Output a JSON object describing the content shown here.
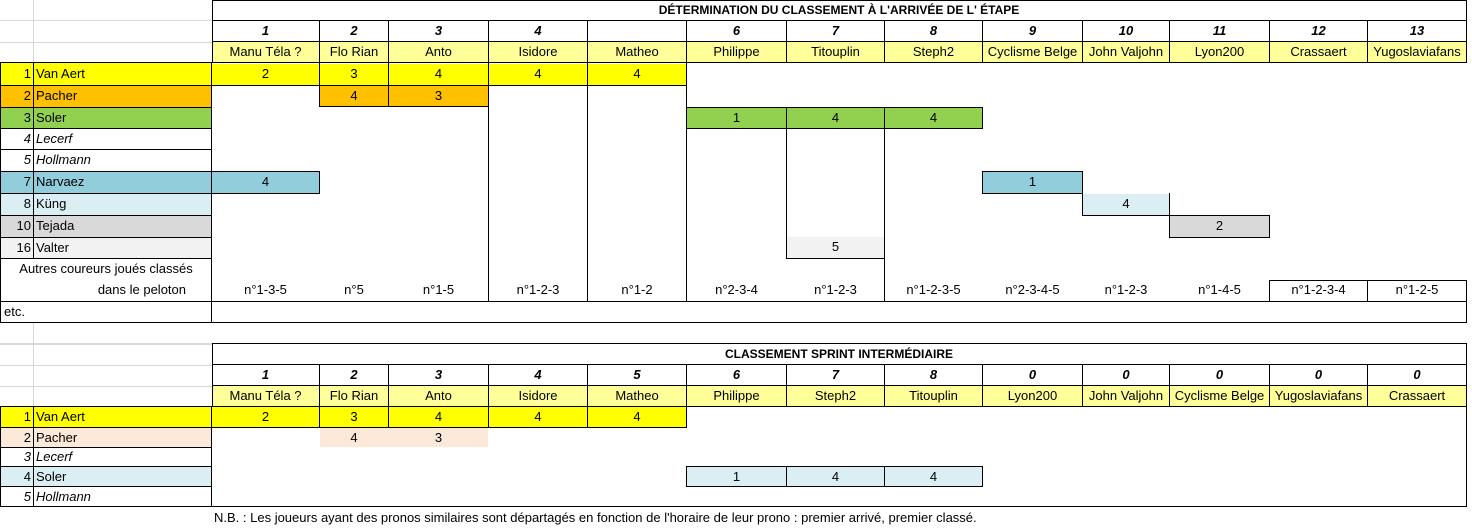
{
  "table1": {
    "title": "DÉTERMINATION DU CLASSEMENT À L'ARRIVÉE DE L' ÉTAPE",
    "player_numbers": [
      "1",
      "2",
      "3",
      "4",
      "",
      "6",
      "7",
      "8",
      "9",
      "10",
      "11",
      "12",
      "13"
    ],
    "players": [
      "Manu Téla ?",
      "Flo Rian",
      "Anto",
      "Isidore",
      "Matheo",
      "Philippe",
      "Titouplin",
      "Steph2",
      "Cyclisme Belge",
      "John Valjohn",
      "Lyon200",
      "Crassaert",
      "Yugoslaviafans"
    ],
    "riders": [
      {
        "num": "1",
        "name": "Van Aert",
        "italic": false,
        "color": "#ffff00"
      },
      {
        "num": "2",
        "name": "Pacher",
        "italic": false,
        "color": "#ffc000"
      },
      {
        "num": "3",
        "name": "Soler",
        "italic": false,
        "color": "#92d050"
      },
      {
        "num": "4",
        "name": "Lecerf",
        "italic": true,
        "color": ""
      },
      {
        "num": "5",
        "name": "Hollmann",
        "italic": true,
        "color": ""
      },
      {
        "num": "7",
        "name": "Narvaez",
        "italic": false,
        "color": "#92cddc"
      },
      {
        "num": "8",
        "name": "Küng",
        "italic": false,
        "color": "#daeef3"
      },
      {
        "num": "10",
        "name": "Tejada",
        "italic": false,
        "color": "#d9d9d9"
      },
      {
        "num": "16",
        "name": "Valter",
        "italic": false,
        "color": "#f2f2f2"
      }
    ],
    "picks": {
      "vanaert": [
        "2",
        "3",
        "4",
        "4",
        "4"
      ],
      "pacher": [
        "4",
        "3"
      ],
      "soler": [
        "1",
        "4",
        "4"
      ],
      "narvaez_p1": "4",
      "narvaez_p9": "1",
      "kung_p10": "4",
      "tejada_p11": "2",
      "valter_p7": "5"
    },
    "others_label_1": "Autres coureurs joués classés",
    "others_label_2": "dans le peloton",
    "others": [
      "n°1-3-5",
      "n°5",
      "n°1-5",
      "n°1-2-3",
      "n°1-2",
      "n°2-3-4",
      "n°1-2-3",
      "n°1-2-3-5",
      "n°2-3-4-5",
      "n°1-2-3",
      "n°1-4-5",
      "n°1-2-3-4",
      "n°1-2-5"
    ],
    "etc": "etc."
  },
  "table2": {
    "title": "CLASSEMENT SPRINT INTERMÉDIAIRE",
    "player_numbers": [
      "1",
      "2",
      "3",
      "4",
      "5",
      "6",
      "7",
      "8",
      "0",
      "0",
      "0",
      "0",
      "0"
    ],
    "players": [
      "Manu Téla ?",
      "Flo Rian",
      "Anto",
      "Isidore",
      "Matheo",
      "Philippe",
      "Steph2",
      "Titouplin",
      "Lyon200",
      "John Valjohn",
      "Cyclisme Belge",
      "Yugoslaviafans",
      "Crassaert"
    ],
    "riders": [
      {
        "num": "1",
        "name": "Van Aert",
        "italic": false,
        "color": "#ffff00"
      },
      {
        "num": "2",
        "name": "Pacher",
        "italic": false,
        "color": "#fde9d9"
      },
      {
        "num": "3",
        "name": "Lecerf",
        "italic": true,
        "color": ""
      },
      {
        "num": "4",
        "name": "Soler",
        "italic": false,
        "color": "#daeef3"
      },
      {
        "num": "5",
        "name": "Hollmann",
        "italic": true,
        "color": ""
      }
    ],
    "picks": {
      "vanaert": [
        "2",
        "3",
        "4",
        "4",
        "4"
      ],
      "pacher": [
        "4",
        "3"
      ],
      "soler": [
        "1",
        "4",
        "4"
      ]
    }
  },
  "note": "N.B. : Les joueurs ayant des pronos similaires sont départagés en fonction de l'horaire de leur prono : premier arrivé, premier classé.",
  "colors": {
    "header_yellow": "#ffff99",
    "pick_yellow": "#ffff00",
    "pick_orange": "#ffc000",
    "pick_green": "#92d050",
    "pick_blue": "#92cddc",
    "pick_lightblue": "#daeef3",
    "pick_gray": "#d9d9d9",
    "pick_lightgray": "#f2f2f2",
    "pick_peach": "#fde9d9"
  }
}
